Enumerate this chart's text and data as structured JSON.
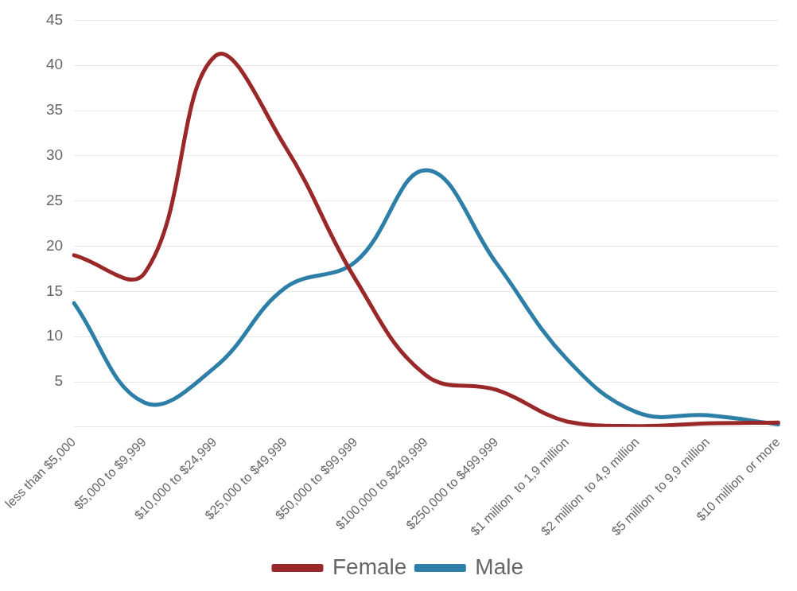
{
  "chart_data": {
    "type": "line",
    "categories": [
      "less than $5,000",
      "$5,000 to $9,999",
      "$10,000 to $24,999",
      "$25,000 to $49,999",
      "$50,000 to $99,999",
      "$100,000 to $249,999",
      "$250,000 to $499,999",
      "$1 million  to 1,9 million",
      "$2 million  to 4,9 million",
      "$5 million  to 9,9 million",
      "$10 million  or more"
    ],
    "series": [
      {
        "name": "Female",
        "color": "#9b2828",
        "values": [
          19,
          17,
          41,
          31,
          16.3,
          5.7,
          4.1,
          0.6,
          0.1,
          0.4,
          0.5
        ]
      },
      {
        "name": "Male",
        "color": "#2d7fa8",
        "values": [
          13.7,
          2.7,
          6.6,
          15.4,
          18.3,
          28.4,
          18.1,
          7.5,
          1.6,
          1.3,
          0.3
        ]
      }
    ],
    "ylim": [
      0,
      45
    ],
    "yticks": [
      {
        "value": 0,
        "label": null
      },
      5,
      10,
      15,
      20,
      25,
      30,
      35,
      40,
      45
    ],
    "grid": "y",
    "legend": "bottom",
    "marker": "none",
    "line_style": "solid"
  }
}
